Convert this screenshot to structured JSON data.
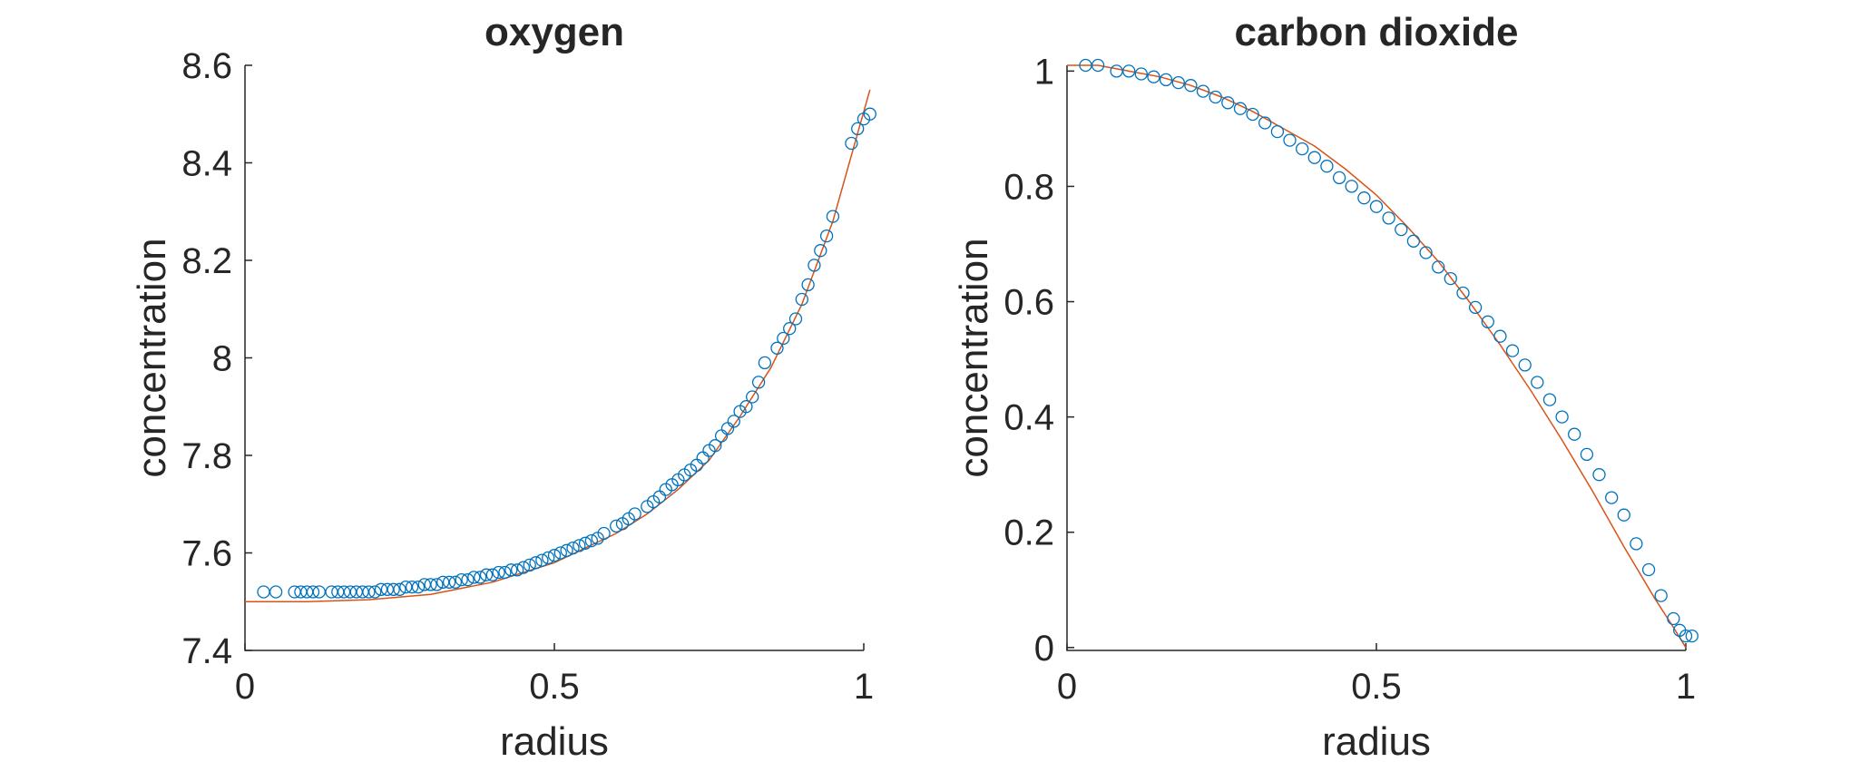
{
  "chart_data": [
    {
      "type": "scatter",
      "title": "oxygen",
      "xlabel": "radius",
      "ylabel": "concentration",
      "xlim": [
        0,
        1
      ],
      "ylim": [
        7.4,
        8.6
      ],
      "xticks": [
        0,
        0.5,
        1
      ],
      "xtick_labels": [
        "0",
        "0.5",
        "1"
      ],
      "yticks": [
        7.4,
        7.6,
        7.8,
        8.0,
        8.2,
        8.4,
        8.6
      ],
      "ytick_labels": [
        "7.4",
        "7.6",
        "7.8",
        "8",
        "8.2",
        "8.4",
        "8.6"
      ],
      "grid": false,
      "marker_color": "#0072BD",
      "line_color": "#D95319",
      "line": {
        "x": [
          0,
          0.1,
          0.2,
          0.3,
          0.4,
          0.5,
          0.55,
          0.6,
          0.65,
          0.7,
          0.75,
          0.8,
          0.85,
          0.9,
          0.95,
          1.01
        ],
        "y": [
          7.5,
          7.5,
          7.504,
          7.515,
          7.54,
          7.58,
          7.61,
          7.64,
          7.68,
          7.73,
          7.79,
          7.88,
          7.98,
          8.11,
          8.28,
          8.55
        ]
      },
      "points": {
        "x": [
          0.03,
          0.05,
          0.08,
          0.09,
          0.1,
          0.11,
          0.12,
          0.14,
          0.15,
          0.16,
          0.17,
          0.18,
          0.19,
          0.2,
          0.21,
          0.22,
          0.23,
          0.24,
          0.25,
          0.26,
          0.27,
          0.28,
          0.29,
          0.3,
          0.31,
          0.32,
          0.33,
          0.34,
          0.35,
          0.36,
          0.37,
          0.38,
          0.39,
          0.4,
          0.41,
          0.42,
          0.43,
          0.44,
          0.45,
          0.46,
          0.47,
          0.48,
          0.49,
          0.5,
          0.51,
          0.52,
          0.53,
          0.54,
          0.55,
          0.56,
          0.57,
          0.58,
          0.6,
          0.61,
          0.62,
          0.63,
          0.65,
          0.66,
          0.67,
          0.68,
          0.69,
          0.7,
          0.71,
          0.72,
          0.73,
          0.74,
          0.75,
          0.76,
          0.77,
          0.78,
          0.79,
          0.8,
          0.81,
          0.82,
          0.83,
          0.84,
          0.86,
          0.87,
          0.88,
          0.89,
          0.9,
          0.91,
          0.92,
          0.93,
          0.94,
          0.95,
          0.98,
          0.99,
          1.0,
          1.01
        ],
        "y": [
          7.52,
          7.52,
          7.52,
          7.52,
          7.52,
          7.52,
          7.52,
          7.52,
          7.52,
          7.52,
          7.52,
          7.52,
          7.52,
          7.52,
          7.52,
          7.525,
          7.525,
          7.525,
          7.525,
          7.53,
          7.53,
          7.53,
          7.535,
          7.535,
          7.535,
          7.54,
          7.54,
          7.54,
          7.545,
          7.545,
          7.55,
          7.55,
          7.555,
          7.555,
          7.56,
          7.56,
          7.565,
          7.565,
          7.57,
          7.575,
          7.58,
          7.585,
          7.59,
          7.595,
          7.6,
          7.605,
          7.61,
          7.615,
          7.62,
          7.625,
          7.63,
          7.64,
          7.655,
          7.66,
          7.67,
          7.68,
          7.695,
          7.705,
          7.715,
          7.73,
          7.74,
          7.75,
          7.76,
          7.77,
          7.78,
          7.795,
          7.81,
          7.82,
          7.84,
          7.855,
          7.87,
          7.89,
          7.9,
          7.92,
          7.95,
          7.99,
          8.02,
          8.04,
          8.06,
          8.08,
          8.12,
          8.15,
          8.19,
          8.22,
          8.25,
          8.29,
          8.44,
          8.47,
          8.49,
          8.5
        ]
      }
    },
    {
      "type": "scatter",
      "title": "carbon dioxide",
      "xlabel": "radius",
      "ylabel": "concentration",
      "xlim": [
        0,
        1
      ],
      "ylim": [
        -0.005,
        1.01
      ],
      "xticks": [
        0,
        0.5,
        1
      ],
      "xtick_labels": [
        "0",
        "0.5",
        "1"
      ],
      "yticks": [
        0,
        0.2,
        0.4,
        0.6,
        0.8,
        1
      ],
      "ytick_labels": [
        "0",
        "0.2",
        "0.4",
        "0.6",
        "0.8",
        "1"
      ],
      "grid": false,
      "marker_color": "#0072BD",
      "line_color": "#D95319",
      "line": {
        "x": [
          0,
          0.05,
          0.1,
          0.15,
          0.2,
          0.25,
          0.3,
          0.35,
          0.4,
          0.45,
          0.5,
          0.55,
          0.6,
          0.65,
          0.7,
          0.75,
          0.8,
          0.85,
          0.9,
          0.95,
          0.98,
          1.0
        ],
        "y": [
          1.01,
          1.01,
          1.0,
          0.99,
          0.975,
          0.955,
          0.93,
          0.9,
          0.87,
          0.83,
          0.785,
          0.73,
          0.67,
          0.6,
          0.525,
          0.445,
          0.36,
          0.27,
          0.175,
          0.085,
          0.035,
          0.0
        ]
      },
      "points": {
        "x": [
          0.03,
          0.05,
          0.08,
          0.1,
          0.12,
          0.14,
          0.16,
          0.18,
          0.2,
          0.22,
          0.24,
          0.26,
          0.28,
          0.3,
          0.32,
          0.34,
          0.36,
          0.38,
          0.4,
          0.42,
          0.44,
          0.46,
          0.48,
          0.5,
          0.52,
          0.54,
          0.56,
          0.58,
          0.6,
          0.62,
          0.64,
          0.66,
          0.68,
          0.7,
          0.72,
          0.74,
          0.76,
          0.78,
          0.8,
          0.82,
          0.84,
          0.86,
          0.88,
          0.9,
          0.92,
          0.94,
          0.96,
          0.98,
          0.99,
          1.0,
          1.01
        ],
        "y": [
          1.01,
          1.01,
          1.0,
          1.0,
          0.995,
          0.99,
          0.985,
          0.98,
          0.975,
          0.965,
          0.955,
          0.945,
          0.935,
          0.925,
          0.91,
          0.895,
          0.88,
          0.865,
          0.85,
          0.835,
          0.815,
          0.8,
          0.78,
          0.765,
          0.745,
          0.725,
          0.705,
          0.685,
          0.66,
          0.64,
          0.615,
          0.59,
          0.565,
          0.54,
          0.515,
          0.49,
          0.46,
          0.43,
          0.4,
          0.37,
          0.335,
          0.3,
          0.26,
          0.23,
          0.18,
          0.135,
          0.09,
          0.05,
          0.03,
          0.02,
          0.02
        ]
      }
    }
  ]
}
